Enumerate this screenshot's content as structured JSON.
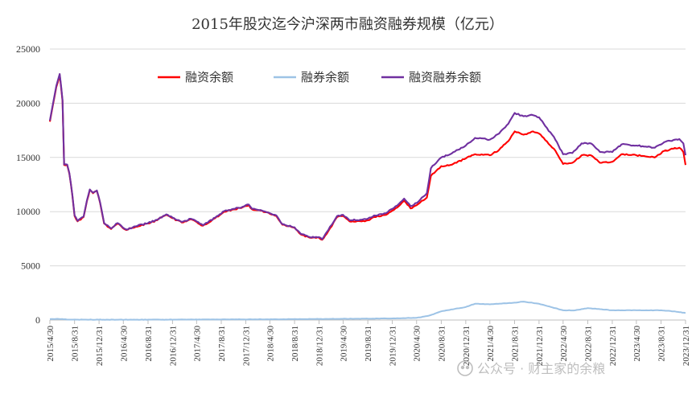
{
  "chart_data": {
    "type": "line",
    "title": "2015年股灾迄今沪深两市融资融券规模（亿元）",
    "xlabel": "",
    "ylabel": "",
    "ylim": [
      0,
      25000
    ],
    "yticks": [
      0,
      5000,
      10000,
      15000,
      20000,
      25000
    ],
    "xlim": [
      "2015-04-30",
      "2023-12-31"
    ],
    "xtick_labels": [
      "2015/4/30",
      "2015/8/31",
      "2015/12/31",
      "2016/4/30",
      "2016/8/31",
      "2016/12/31",
      "2017/4/30",
      "2017/8/31",
      "2017/12/31",
      "2018/4/30",
      "2018/8/31",
      "2018/12/31",
      "2019/4/30",
      "2019/8/31",
      "2019/12/31",
      "2020/4/30",
      "2020/8/31",
      "2020/12/31",
      "2021/4/30",
      "2021/8/31",
      "2021/12/31",
      "2022/4/30",
      "2022/8/31",
      "2022/12/31",
      "2023/4/30",
      "2023/8/31",
      "2023/12/31"
    ],
    "grid": "horizontal",
    "legend_position": "top",
    "series": [
      {
        "name": "融资余额",
        "color": "#ff0000",
        "points": [
          [
            "2015-04-30",
            18300
          ],
          [
            "2015-05-15",
            19800
          ],
          [
            "2015-06-01",
            21500
          ],
          [
            "2015-06-18",
            22600
          ],
          [
            "2015-07-02",
            20200
          ],
          [
            "2015-07-10",
            14300
          ],
          [
            "2015-07-25",
            14300
          ],
          [
            "2015-08-05",
            13500
          ],
          [
            "2015-08-20",
            11500
          ],
          [
            "2015-08-31",
            9600
          ],
          [
            "2015-09-15",
            9100
          ],
          [
            "2015-10-15",
            9500
          ],
          [
            "2015-11-01",
            11000
          ],
          [
            "2015-11-15",
            12000
          ],
          [
            "2015-12-01",
            11700
          ],
          [
            "2015-12-20",
            11900
          ],
          [
            "2016-01-05",
            10800
          ],
          [
            "2016-01-25",
            8900
          ],
          [
            "2016-02-29",
            8400
          ],
          [
            "2016-04-01",
            8900
          ],
          [
            "2016-05-15",
            8300
          ],
          [
            "2016-07-01",
            8600
          ],
          [
            "2016-08-31",
            8900
          ],
          [
            "2016-10-15",
            9200
          ],
          [
            "2016-11-30",
            9700
          ],
          [
            "2016-12-31",
            9400
          ],
          [
            "2017-02-15",
            9000
          ],
          [
            "2017-04-01",
            9300
          ],
          [
            "2017-06-01",
            8700
          ],
          [
            "2017-08-01",
            9400
          ],
          [
            "2017-09-15",
            10000
          ],
          [
            "2017-10-31",
            10200
          ],
          [
            "2017-12-15",
            10400
          ],
          [
            "2018-01-15",
            10600
          ],
          [
            "2018-02-01",
            10200
          ],
          [
            "2018-03-15",
            10100
          ],
          [
            "2018-04-30",
            9800
          ],
          [
            "2018-06-01",
            9600
          ],
          [
            "2018-07-01",
            8800
          ],
          [
            "2018-08-31",
            8500
          ],
          [
            "2018-10-01",
            7900
          ],
          [
            "2018-11-15",
            7600
          ],
          [
            "2018-12-31",
            7600
          ],
          [
            "2019-01-15",
            7400
          ],
          [
            "2019-02-15",
            8200
          ],
          [
            "2019-03-31",
            9500
          ],
          [
            "2019-04-30",
            9600
          ],
          [
            "2019-06-01",
            9100
          ],
          [
            "2019-08-01",
            9100
          ],
          [
            "2019-08-31",
            9200
          ],
          [
            "2019-10-01",
            9500
          ],
          [
            "2019-11-30",
            9700
          ],
          [
            "2019-12-31",
            10100
          ],
          [
            "2020-02-01",
            10500
          ],
          [
            "2020-02-28",
            11000
          ],
          [
            "2020-03-31",
            10300
          ],
          [
            "2020-05-01",
            10600
          ],
          [
            "2020-06-20",
            11300
          ],
          [
            "2020-07-10",
            13300
          ],
          [
            "2020-08-31",
            14200
          ],
          [
            "2020-10-15",
            14300
          ],
          [
            "2020-12-31",
            14900
          ],
          [
            "2021-02-15",
            15300
          ],
          [
            "2021-04-30",
            15200
          ],
          [
            "2021-06-15",
            15700
          ],
          [
            "2021-07-31",
            16500
          ],
          [
            "2021-09-01",
            17400
          ],
          [
            "2021-10-15",
            17100
          ],
          [
            "2021-12-01",
            17400
          ],
          [
            "2021-12-31",
            17200
          ],
          [
            "2022-01-31",
            16600
          ],
          [
            "2022-03-15",
            15800
          ],
          [
            "2022-04-30",
            14400
          ],
          [
            "2022-06-15",
            14500
          ],
          [
            "2022-07-31",
            15200
          ],
          [
            "2022-09-15",
            15200
          ],
          [
            "2022-10-31",
            14500
          ],
          [
            "2022-12-31",
            14600
          ],
          [
            "2023-02-15",
            15300
          ],
          [
            "2023-04-30",
            15200
          ],
          [
            "2023-06-15",
            15100
          ],
          [
            "2023-07-31",
            15000
          ],
          [
            "2023-09-15",
            15600
          ],
          [
            "2023-10-31",
            15800
          ],
          [
            "2023-11-30",
            15900
          ],
          [
            "2023-12-20",
            15500
          ],
          [
            "2023-12-31",
            14300
          ]
        ]
      },
      {
        "name": "融券余额",
        "color": "#9dc3e6",
        "points": [
          [
            "2015-04-30",
            80
          ],
          [
            "2015-06-15",
            100
          ],
          [
            "2015-07-31",
            40
          ],
          [
            "2016-06-30",
            30
          ],
          [
            "2017-06-30",
            50
          ],
          [
            "2018-06-30",
            70
          ],
          [
            "2019-06-30",
            120
          ],
          [
            "2019-12-31",
            150
          ],
          [
            "2020-04-30",
            200
          ],
          [
            "2020-06-30",
            400
          ],
          [
            "2020-08-31",
            800
          ],
          [
            "2020-12-31",
            1200
          ],
          [
            "2021-02-15",
            1500
          ],
          [
            "2021-04-30",
            1450
          ],
          [
            "2021-08-31",
            1600
          ],
          [
            "2021-10-15",
            1700
          ],
          [
            "2021-12-31",
            1500
          ],
          [
            "2022-02-28",
            1200
          ],
          [
            "2022-04-30",
            900
          ],
          [
            "2022-06-30",
            900
          ],
          [
            "2022-08-31",
            1100
          ],
          [
            "2022-10-31",
            1000
          ],
          [
            "2022-12-31",
            900
          ],
          [
            "2023-04-30",
            900
          ],
          [
            "2023-08-31",
            900
          ],
          [
            "2023-10-31",
            800
          ],
          [
            "2023-12-31",
            650
          ]
        ]
      },
      {
        "name": "融资融券余额",
        "color": "#7030a0",
        "points": [
          [
            "2015-04-30",
            18400
          ],
          [
            "2015-05-15",
            19900
          ],
          [
            "2015-06-01",
            21600
          ],
          [
            "2015-06-18",
            22700
          ],
          [
            "2015-07-02",
            20300
          ],
          [
            "2015-07-10",
            14350
          ],
          [
            "2015-07-25",
            14350
          ],
          [
            "2015-08-05",
            13550
          ],
          [
            "2015-08-20",
            11550
          ],
          [
            "2015-08-31",
            9650
          ],
          [
            "2015-09-15",
            9150
          ],
          [
            "2015-10-15",
            9550
          ],
          [
            "2015-11-01",
            11050
          ],
          [
            "2015-11-15",
            12050
          ],
          [
            "2015-12-01",
            11750
          ],
          [
            "2015-12-20",
            11950
          ],
          [
            "2016-01-05",
            10850
          ],
          [
            "2016-01-25",
            8950
          ],
          [
            "2016-02-29",
            8450
          ],
          [
            "2016-04-01",
            8950
          ],
          [
            "2016-05-15",
            8350
          ],
          [
            "2016-07-01",
            8650
          ],
          [
            "2016-08-31",
            8950
          ],
          [
            "2016-10-15",
            9250
          ],
          [
            "2016-11-30",
            9750
          ],
          [
            "2016-12-31",
            9450
          ],
          [
            "2017-02-15",
            9050
          ],
          [
            "2017-04-01",
            9350
          ],
          [
            "2017-06-01",
            8750
          ],
          [
            "2017-08-01",
            9450
          ],
          [
            "2017-09-15",
            10050
          ],
          [
            "2017-10-31",
            10250
          ],
          [
            "2017-12-15",
            10450
          ],
          [
            "2018-01-15",
            10650
          ],
          [
            "2018-02-01",
            10250
          ],
          [
            "2018-03-15",
            10150
          ],
          [
            "2018-04-30",
            9850
          ],
          [
            "2018-06-01",
            9650
          ],
          [
            "2018-07-01",
            8850
          ],
          [
            "2018-08-31",
            8550
          ],
          [
            "2018-10-01",
            7950
          ],
          [
            "2018-11-15",
            7650
          ],
          [
            "2018-12-31",
            7650
          ],
          [
            "2019-01-15",
            7450
          ],
          [
            "2019-02-15",
            8300
          ],
          [
            "2019-03-31",
            9600
          ],
          [
            "2019-04-30",
            9700
          ],
          [
            "2019-06-01",
            9200
          ],
          [
            "2019-08-01",
            9250
          ],
          [
            "2019-08-31",
            9350
          ],
          [
            "2019-10-01",
            9650
          ],
          [
            "2019-11-30",
            9850
          ],
          [
            "2019-12-31",
            10250
          ],
          [
            "2020-02-01",
            10700
          ],
          [
            "2020-02-28",
            11200
          ],
          [
            "2020-03-31",
            10500
          ],
          [
            "2020-05-01",
            10800
          ],
          [
            "2020-06-20",
            11700
          ],
          [
            "2020-07-10",
            14000
          ],
          [
            "2020-08-31",
            15000
          ],
          [
            "2020-10-15",
            15300
          ],
          [
            "2020-12-31",
            16100
          ],
          [
            "2021-02-15",
            16800
          ],
          [
            "2021-04-30",
            16650
          ],
          [
            "2021-06-15",
            17200
          ],
          [
            "2021-07-31",
            18100
          ],
          [
            "2021-09-01",
            19100
          ],
          [
            "2021-10-15",
            18800
          ],
          [
            "2021-12-01",
            18900
          ],
          [
            "2021-12-31",
            18700
          ],
          [
            "2022-01-31",
            17900
          ],
          [
            "2022-03-15",
            16900
          ],
          [
            "2022-04-30",
            15300
          ],
          [
            "2022-06-15",
            15400
          ],
          [
            "2022-07-31",
            16300
          ],
          [
            "2022-09-15",
            16300
          ],
          [
            "2022-10-31",
            15500
          ],
          [
            "2022-12-31",
            15500
          ],
          [
            "2023-02-15",
            16200
          ],
          [
            "2023-04-30",
            16100
          ],
          [
            "2023-06-15",
            16000
          ],
          [
            "2023-07-31",
            15900
          ],
          [
            "2023-09-15",
            16400
          ],
          [
            "2023-10-31",
            16600
          ],
          [
            "2023-11-30",
            16700
          ],
          [
            "2023-12-20",
            16300
          ],
          [
            "2023-12-31",
            15200
          ]
        ]
      }
    ]
  },
  "watermark": {
    "text": "公众号 · 财主家的余粮",
    "icon": "wechat-official-account-icon"
  }
}
